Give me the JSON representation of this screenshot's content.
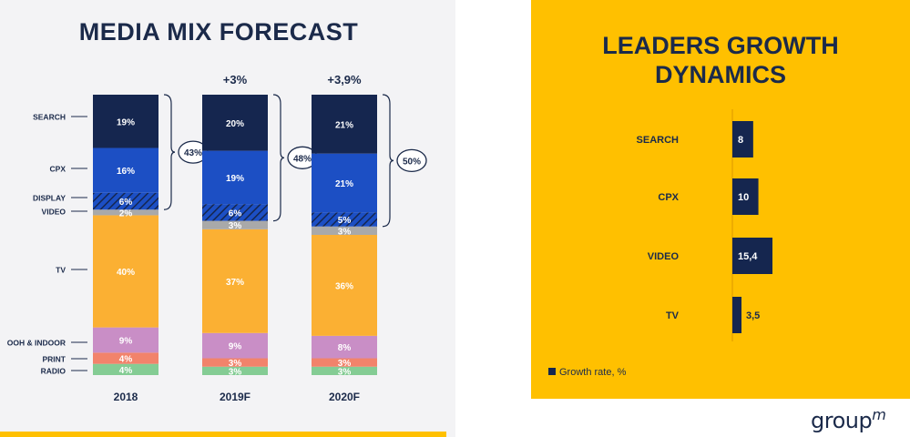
{
  "mix_title": "MEDIA MIX FORECAST",
  "leaders_title": [
    "LEADERS GROWTH",
    "DYNAMICS"
  ],
  "logo": {
    "text": "group",
    "sup": "m"
  },
  "colors": {
    "search": "#15264f",
    "cpx": "#1c4fc4",
    "display": "#1c4fc4",
    "video": "#a9a9a9",
    "tv": "#fbb033",
    "ooh": "#c98ec6",
    "print": "#f2836b",
    "radio": "#84cc94",
    "growth_bar": "#15264f",
    "navy": "#1b2a4a"
  },
  "chart_data": [
    {
      "type": "bar",
      "stacked": true,
      "title": "MEDIA MIX FORECAST",
      "categories": [
        "2018",
        "2019F",
        "2020F"
      ],
      "top_annotations": [
        "",
        "+3%",
        "+3,9%"
      ],
      "bracket_labels": [
        "43%",
        "48%",
        "50%"
      ],
      "series": [
        {
          "name": "SEARCH",
          "key": "search",
          "values": [
            19,
            20,
            21
          ],
          "labels": [
            "19%",
            "20%",
            "21%"
          ]
        },
        {
          "name": "CPX",
          "key": "cpx",
          "values": [
            16,
            19,
            21
          ],
          "labels": [
            "16%",
            "19%",
            "21%"
          ]
        },
        {
          "name": "DISPLAY",
          "key": "display",
          "hatched": true,
          "values": [
            6,
            6,
            5
          ],
          "labels": [
            "6%",
            "6%",
            "5%"
          ]
        },
        {
          "name": "VIDEO",
          "key": "video",
          "values": [
            2,
            3,
            3
          ],
          "labels": [
            "2%",
            "3%",
            "3%"
          ]
        },
        {
          "name": "TV",
          "key": "tv",
          "values": [
            40,
            37,
            36
          ],
          "labels": [
            "40%",
            "37%",
            "36%"
          ]
        },
        {
          "name": "OOH & INDOOR",
          "key": "ooh",
          "values": [
            9,
            9,
            8
          ],
          "labels": [
            "9%",
            "9%",
            "8%"
          ]
        },
        {
          "name": "PRINT",
          "key": "print",
          "values": [
            4,
            3,
            3
          ],
          "labels": [
            "4%",
            "3%",
            "3%"
          ]
        },
        {
          "name": "RADIO",
          "key": "radio",
          "values": [
            4,
            3,
            3
          ],
          "labels": [
            "4%",
            "3%",
            "3%"
          ]
        }
      ]
    },
    {
      "type": "bar",
      "orientation": "horizontal",
      "title": "LEADERS GROWTH DYNAMICS",
      "categories": [
        "SEARCH",
        "CPX",
        "VIDEO",
        "TV"
      ],
      "values": [
        8,
        10,
        15.4,
        3.5
      ],
      "labels": [
        "8",
        "10",
        "15,4",
        "3,5"
      ],
      "legend": "Growth rate, %"
    }
  ]
}
